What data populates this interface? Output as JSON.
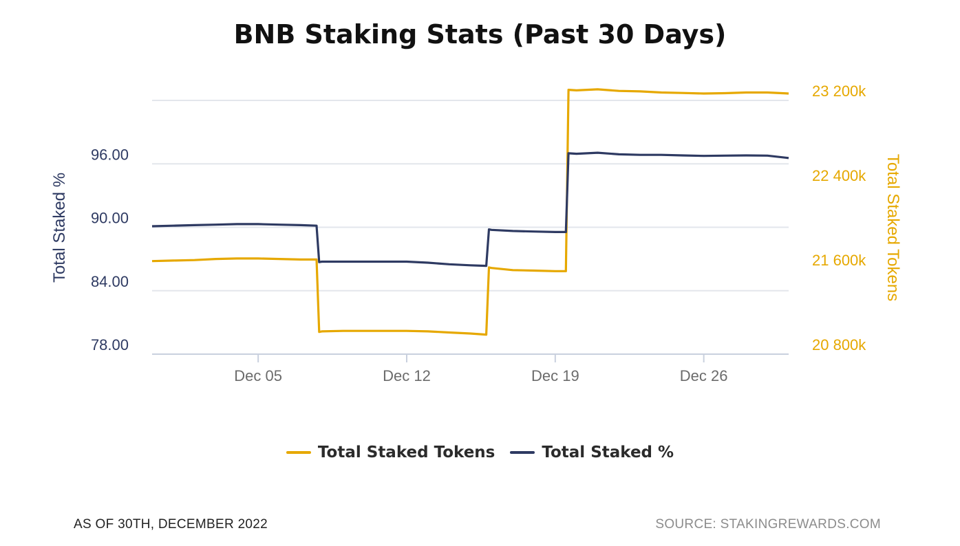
{
  "colors": {
    "tokens": "#e6a800",
    "percent": "#2e3a62",
    "grid": "#e3e6ec",
    "xtick": "#6b6b6b"
  },
  "footer": {
    "as_of": "AS OF 30TH, DECEMBER 2022",
    "source": "SOURCE: STAKINGREWARDS.COM"
  },
  "chart_data": {
    "type": "line",
    "title": "BNB Staking Stats (Past 30 Days)",
    "x_ticks": [
      "Dec 05",
      "Dec 12",
      "Dec 19",
      "Dec 26"
    ],
    "xlim": [
      "2022-11-30",
      "2022-12-30"
    ],
    "y_left": {
      "label": "Total Staked %",
      "ticks": [
        "96.00",
        "90.00",
        "84.00",
        "78.00"
      ],
      "tick_values": [
        96,
        90,
        84,
        78
      ],
      "range": [
        78,
        102
      ]
    },
    "y_right": {
      "label": "Total Staked Tokens",
      "ticks": [
        "23 200k",
        "22 400k",
        "21 600k",
        "20 800k"
      ],
      "tick_values": [
        23200000,
        22400000,
        21600000,
        20800000
      ],
      "range": [
        20800000,
        23200000
      ]
    },
    "grid": true,
    "legend_position": "bottom",
    "series": [
      {
        "name": "Total Staked Tokens",
        "axis": "right",
        "points": [
          [
            "2022-11-30",
            21680000
          ],
          [
            "2022-12-01",
            21685000
          ],
          [
            "2022-12-02",
            21690000
          ],
          [
            "2022-12-03",
            21700000
          ],
          [
            "2022-12-04",
            21705000
          ],
          [
            "2022-12-05",
            21705000
          ],
          [
            "2022-12-06",
            21700000
          ],
          [
            "2022-12-07",
            21695000
          ],
          [
            "2022-12-07T18:00",
            21695000
          ],
          [
            "2022-12-07T21:00",
            21010000
          ],
          [
            "2022-12-08",
            21015000
          ],
          [
            "2022-12-09",
            21020000
          ],
          [
            "2022-12-10",
            21020000
          ],
          [
            "2022-12-11",
            21020000
          ],
          [
            "2022-12-12",
            21020000
          ],
          [
            "2022-12-13",
            21015000
          ],
          [
            "2022-12-14",
            21005000
          ],
          [
            "2022-12-15",
            20995000
          ],
          [
            "2022-12-15T18:00",
            20985000
          ],
          [
            "2022-12-15T21:00",
            21620000
          ],
          [
            "2022-12-16",
            21615000
          ],
          [
            "2022-12-17",
            21595000
          ],
          [
            "2022-12-18",
            21590000
          ],
          [
            "2022-12-19",
            21585000
          ],
          [
            "2022-12-19T12:00",
            21585000
          ],
          [
            "2022-12-19T15:00",
            23300000
          ],
          [
            "2022-12-20",
            23295000
          ],
          [
            "2022-12-21",
            23305000
          ],
          [
            "2022-12-22",
            23290000
          ],
          [
            "2022-12-23",
            23285000
          ],
          [
            "2022-12-24",
            23275000
          ],
          [
            "2022-12-25",
            23270000
          ],
          [
            "2022-12-26",
            23265000
          ],
          [
            "2022-12-27",
            23268000
          ],
          [
            "2022-12-28",
            23275000
          ],
          [
            "2022-12-29",
            23275000
          ],
          [
            "2022-12-30",
            23265000
          ]
        ]
      },
      {
        "name": "Total Staked %",
        "axis": "left",
        "points": [
          [
            "2022-11-30",
            90.1
          ],
          [
            "2022-12-01",
            90.15
          ],
          [
            "2022-12-02",
            90.2
          ],
          [
            "2022-12-03",
            90.25
          ],
          [
            "2022-12-04",
            90.3
          ],
          [
            "2022-12-05",
            90.3
          ],
          [
            "2022-12-06",
            90.25
          ],
          [
            "2022-12-07",
            90.2
          ],
          [
            "2022-12-07T18:00",
            90.15
          ],
          [
            "2022-12-07T21:00",
            86.7
          ],
          [
            "2022-12-08",
            86.75
          ],
          [
            "2022-12-09",
            86.75
          ],
          [
            "2022-12-10",
            86.75
          ],
          [
            "2022-12-11",
            86.75
          ],
          [
            "2022-12-12",
            86.75
          ],
          [
            "2022-12-13",
            86.65
          ],
          [
            "2022-12-14",
            86.5
          ],
          [
            "2022-12-15",
            86.4
          ],
          [
            "2022-12-15T18:00",
            86.35
          ],
          [
            "2022-12-15T21:00",
            89.8
          ],
          [
            "2022-12-16",
            89.75
          ],
          [
            "2022-12-17",
            89.65
          ],
          [
            "2022-12-18",
            89.6
          ],
          [
            "2022-12-19",
            89.55
          ],
          [
            "2022-12-19T12:00",
            89.55
          ],
          [
            "2022-12-19T15:00",
            97.0
          ],
          [
            "2022-12-20",
            96.95
          ],
          [
            "2022-12-21",
            97.05
          ],
          [
            "2022-12-22",
            96.9
          ],
          [
            "2022-12-23",
            96.85
          ],
          [
            "2022-12-24",
            96.85
          ],
          [
            "2022-12-25",
            96.8
          ],
          [
            "2022-12-26",
            96.75
          ],
          [
            "2022-12-27",
            96.78
          ],
          [
            "2022-12-28",
            96.8
          ],
          [
            "2022-12-29",
            96.78
          ],
          [
            "2022-12-30",
            96.55
          ]
        ]
      }
    ]
  }
}
